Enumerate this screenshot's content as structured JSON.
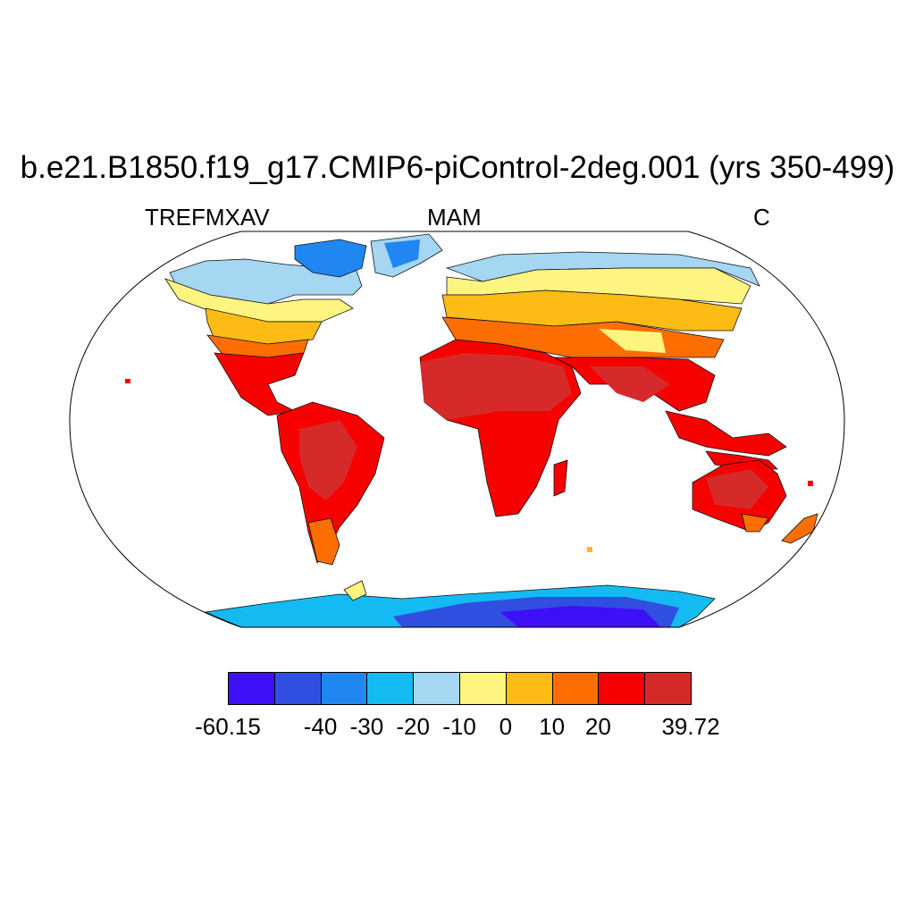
{
  "title": "b.e21.B1850.f19_g17.CMIP6-piControl-2deg.001 (yrs 350-499)",
  "subtitle": {
    "left": "TREFMXAV",
    "center": "MAM",
    "right": "C"
  },
  "colorbar": {
    "colors": [
      "#3e0ff7",
      "#304fe0",
      "#2087f2",
      "#13bbf2",
      "#a5d6f2",
      "#fdf580",
      "#fdbb16",
      "#fd6e02",
      "#f70000",
      "#d62a2a"
    ],
    "labels": [
      "-60.15",
      "-40",
      "-30",
      "-20",
      "-10",
      "0",
      "10",
      "20",
      "39.72"
    ]
  }
}
